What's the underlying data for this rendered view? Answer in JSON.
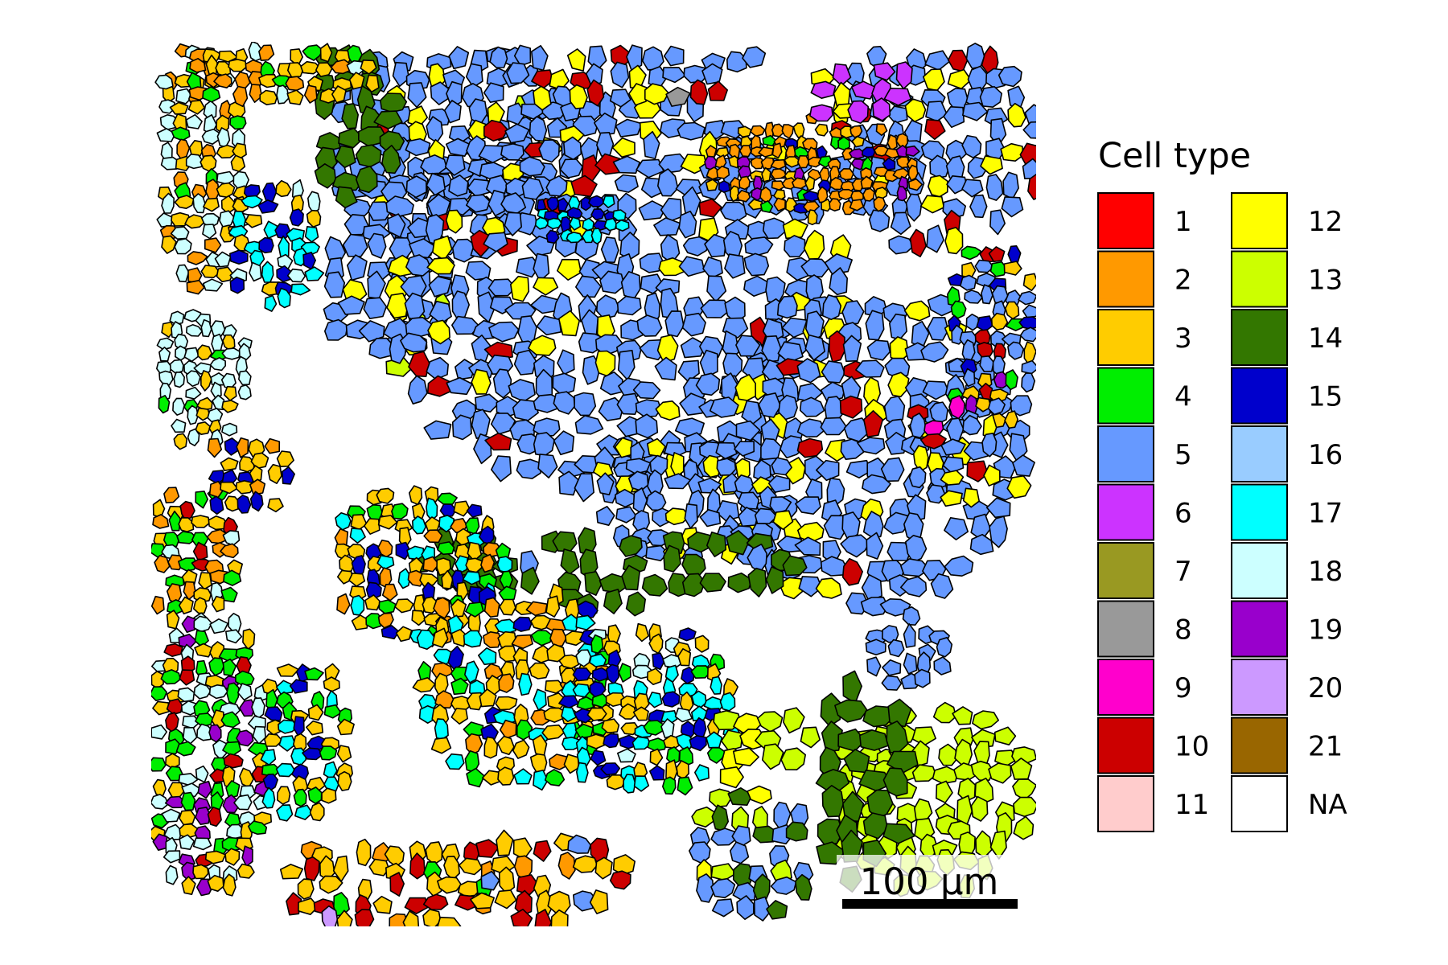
{
  "legend": {
    "title": "Cell type",
    "items": [
      {
        "label": "1",
        "color": "#ff0000"
      },
      {
        "label": "2",
        "color": "#ff9900"
      },
      {
        "label": "3",
        "color": "#ffcc00"
      },
      {
        "label": "4",
        "color": "#00ee00"
      },
      {
        "label": "5",
        "color": "#6699ff"
      },
      {
        "label": "6",
        "color": "#cc33ff"
      },
      {
        "label": "7",
        "color": "#999922"
      },
      {
        "label": "8",
        "color": "#999999"
      },
      {
        "label": "9",
        "color": "#ff00cc"
      },
      {
        "label": "10",
        "color": "#cc0000"
      },
      {
        "label": "11",
        "color": "#ffcccc"
      },
      {
        "label": "12",
        "color": "#ffff00"
      },
      {
        "label": "13",
        "color": "#ccff00"
      },
      {
        "label": "14",
        "color": "#337700"
      },
      {
        "label": "15",
        "color": "#0000cc"
      },
      {
        "label": "16",
        "color": "#99ccff"
      },
      {
        "label": "17",
        "color": "#00ffff"
      },
      {
        "label": "18",
        "color": "#ccffff"
      },
      {
        "label": "19",
        "color": "#9900cc"
      },
      {
        "label": "20",
        "color": "#cc99ff"
      },
      {
        "label": "21",
        "color": "#996600"
      },
      {
        "label": "NA",
        "color": "#ffffff"
      }
    ]
  },
  "scale_bar": {
    "label": "100 µm"
  }
}
